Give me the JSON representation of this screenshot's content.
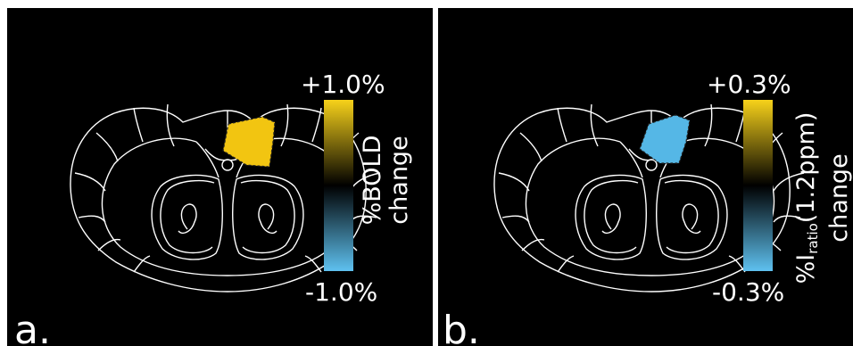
{
  "panels": [
    {
      "letter": "a.",
      "scale": {
        "max": "+1.0%",
        "min": "-1.0%",
        "label_line1": "%BOLD",
        "label_line2": "change"
      },
      "roi_color": "#f2c511"
    },
    {
      "letter": "b.",
      "scale": {
        "max": "+0.3%",
        "min": "-0.3%",
        "label_prefix": "%I",
        "label_sub": "ratio",
        "label_suffix": "(1.2ppm)",
        "label_line2": "change"
      },
      "roi_color": "#55b7e6"
    }
  ],
  "colors": {
    "positive": "#f7d21a",
    "negative": "#5ec1f0",
    "background": "#000000",
    "outline": "#ffffff"
  }
}
